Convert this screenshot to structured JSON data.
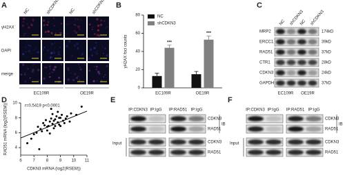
{
  "panels": {
    "A": {
      "label": "A",
      "rows": [
        "γH2AX",
        "DAPI",
        "merge"
      ],
      "columns": [
        "NC",
        "shCDKN3",
        "NC",
        "shCDKN3"
      ],
      "groups": [
        "EC109R",
        "OE19R"
      ]
    },
    "C": {
      "label": "C",
      "columns": [
        "NC",
        "shCDKN3",
        "NC",
        "shCDKN3"
      ],
      "rows": [
        "MRP2",
        "ERCC1",
        "RAD51",
        "CTR1",
        "CDKN3",
        "GAPDH"
      ],
      "sizes": [
        "174kD",
        "39kD",
        "37kD",
        "28kD",
        "24kD",
        "37kD"
      ],
      "groups": [
        "EC109R",
        "OE19R"
      ]
    },
    "E": {
      "label": "E",
      "columns": [
        "IP:CDKN3",
        "IP:IgG",
        "IP:RAD51",
        "IP:IgG"
      ],
      "rows": [
        "CDKN3",
        "RAD51",
        "CDKN3",
        "RAD51"
      ],
      "ib": "IB",
      "input": "Input"
    },
    "F": {
      "label": "F",
      "columns": [
        "IP:CDKN3",
        "IP:IgG",
        "IP:RAD51",
        "IP:IgG"
      ],
      "rows": [
        "CDKN3",
        "RAD51",
        "CDKN3",
        "RAD51"
      ],
      "ib": "IB",
      "input": "Input"
    }
  },
  "chart_data": [
    {
      "type": "bar",
      "panel_label": "B",
      "ylabel": "γH2AX foci counts",
      "categories": [
        "EC109R",
        "OE19R"
      ],
      "series": [
        {
          "name": "NC",
          "color": "#111111",
          "values": [
            13,
            15
          ],
          "errors": [
            3,
            3
          ]
        },
        {
          "name": "shCDKN3",
          "color": "#808080",
          "values": [
            44,
            53
          ],
          "errors": [
            3,
            4
          ]
        }
      ],
      "annotations": [
        "***",
        "***"
      ],
      "ylim": [
        0,
        80
      ],
      "yticks": [
        0,
        20,
        40,
        60,
        80
      ],
      "legend": "top-left"
    },
    {
      "type": "scatter",
      "panel_label": "D",
      "annotation": "r=0.5419 p<0.0001",
      "xlabel": "CDKN3 mRNA (log2(RSEM))",
      "ylabel": "RAD51 mRNA (log2(RSEM))",
      "x": [
        7.2,
        7.5,
        7.8,
        8.0,
        8.2,
        8.4,
        8.6,
        8.8,
        9.0,
        9.2,
        9.5,
        9.8,
        10.2,
        6.8,
        7.0,
        7.6,
        8.1,
        8.3,
        8.5,
        8.7,
        8.9,
        9.1,
        9.3,
        7.9,
        8.0,
        8.4,
        8.6,
        8.8,
        9.4,
        9.7,
        7.3,
        7.7,
        8.2,
        8.5,
        9.0,
        6.5,
        10.6,
        8.3,
        8.9,
        7.4
      ],
      "y": [
        6.0,
        6.5,
        7.0,
        6.8,
        7.5,
        7.2,
        7.8,
        7.4,
        8.0,
        7.6,
        8.2,
        8.6,
        8.4,
        5.2,
        5.8,
        6.2,
        6.9,
        7.9,
        6.6,
        8.2,
        7.1,
        8.4,
        7.3,
        7.7,
        6.3,
        8.5,
        6.9,
        8.8,
        7.9,
        7.5,
        6.8,
        7.3,
        5.9,
        7.6,
        6.9,
        4.6,
        9.5,
        9.2,
        8.0,
        3.8
      ],
      "fit": {
        "x": [
          6,
          11
        ],
        "y": [
          5.3,
          8.9
        ]
      },
      "color": "#000000",
      "xlim": [
        6,
        11
      ],
      "ylim": [
        3,
        10
      ],
      "xticks": [
        6,
        7,
        8,
        9,
        10,
        11
      ],
      "yticks": [
        4,
        6,
        8,
        10
      ]
    }
  ]
}
